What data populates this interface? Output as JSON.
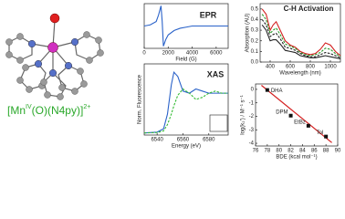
{
  "compound_label": {
    "parts": [
      "[Mn",
      "IV",
      "(O)(N4py)]",
      "2+"
    ]
  },
  "chart_data": [
    {
      "type": "line",
      "title": "EPR",
      "xlabel": "Field (G)",
      "x": [
        0,
        500,
        1000,
        1200,
        1400,
        1500,
        1600,
        1800,
        2000,
        2500,
        3000,
        3500,
        4000,
        5000,
        6000,
        7000
      ],
      "series": [
        {
          "color": "#2a62c9",
          "values": [
            0,
            0.05,
            0.2,
            0.5,
            0.9,
            0.2,
            -0.9,
            -0.6,
            -0.4,
            -0.2,
            -0.1,
            -0.05,
            0,
            0,
            0,
            0
          ]
        }
      ],
      "xlim": [
        0,
        7000
      ],
      "xticks": [
        0,
        2000,
        4000,
        6000
      ],
      "ylim": [
        -1,
        1
      ]
    },
    {
      "type": "line",
      "title": "XAS",
      "xlabel": "Energy (eV)",
      "ylabel": "Norm. Fluorescence",
      "x": [
        6530,
        6540,
        6545,
        6548,
        6551,
        6553,
        6556,
        6560,
        6565,
        6570,
        6575,
        6580,
        6585,
        6590,
        6595
      ],
      "series": [
        {
          "color": "#2a62c9",
          "dashed": false,
          "values": [
            0.05,
            0.07,
            0.15,
            0.5,
            1.2,
            1.5,
            1.4,
            1.05,
            1.0,
            1.1,
            1.05,
            1.0,
            1.0,
            1.0,
            1.0
          ]
        },
        {
          "color": "#33bb33",
          "dashed": true,
          "values": [
            0.05,
            0.06,
            0.1,
            0.25,
            0.5,
            0.7,
            0.95,
            1.1,
            1.0,
            0.85,
            0.9,
            1.0,
            1.05,
            1.0,
            1.0
          ]
        }
      ],
      "xlim": [
        6530,
        6595
      ],
      "xticks": [
        6540,
        6560,
        6580
      ],
      "ylim": [
        0,
        1.7
      ]
    },
    {
      "type": "line",
      "title": "C-H Activation",
      "xlabel": "Wavelength (nm)",
      "ylabel": "Absorption (AU)",
      "x": [
        320,
        360,
        400,
        430,
        460,
        500,
        550,
        600,
        650,
        700,
        750,
        800,
        850,
        900,
        950,
        1000,
        1050,
        1100
      ],
      "series": [
        {
          "color": "#d42020",
          "dashed": false,
          "values": [
            0.5,
            0.45,
            0.3,
            0.35,
            0.38,
            0.3,
            0.2,
            0.16,
            0.14,
            0.1,
            0.08,
            0.07,
            0.08,
            0.12,
            0.18,
            0.16,
            0.1,
            0.06
          ]
        },
        {
          "color": "#2a9a2a",
          "dashed": true,
          "values": [
            0.45,
            0.4,
            0.27,
            0.3,
            0.32,
            0.26,
            0.17,
            0.15,
            0.13,
            0.09,
            0.07,
            0.06,
            0.07,
            0.09,
            0.13,
            0.12,
            0.08,
            0.05
          ]
        },
        {
          "color": "#222222",
          "dashed": true,
          "values": [
            0.4,
            0.35,
            0.24,
            0.26,
            0.27,
            0.22,
            0.14,
            0.13,
            0.11,
            0.08,
            0.06,
            0.05,
            0.05,
            0.07,
            0.09,
            0.08,
            0.06,
            0.04
          ]
        },
        {
          "color": "#222222",
          "dashed": false,
          "values": [
            0.35,
            0.3,
            0.2,
            0.21,
            0.21,
            0.17,
            0.11,
            0.1,
            0.09,
            0.06,
            0.05,
            0.04,
            0.04,
            0.05,
            0.06,
            0.05,
            0.04,
            0.03
          ]
        }
      ],
      "xlim": [
        300,
        1100
      ],
      "xticks": [
        400,
        600,
        800,
        1000
      ],
      "ylim": [
        0,
        0.55
      ],
      "yticks": [
        {
          "value": 0,
          "label": "0.0"
        },
        0.1,
        0.2,
        0.3,
        0.4,
        0.5
      ]
    },
    {
      "type": "scatter",
      "xlabel": "BDE (kcal mol⁻¹)",
      "ylabel": "log(k₂′) / M⁻¹ s⁻¹",
      "labels": [
        "DHA",
        "DPM",
        "EtBz",
        "Tol"
      ],
      "x": [
        78,
        82,
        85,
        88
      ],
      "values": [
        -0.05,
        -1.95,
        -2.7,
        -3.5
      ],
      "color": "#111111",
      "fit": {
        "color": "#d42020",
        "x": [
          77,
          89
        ],
        "values": [
          0.3,
          -3.95
        ]
      },
      "xlim": [
        76,
        90
      ],
      "xticks": [
        76,
        78,
        80,
        82,
        84,
        86,
        88,
        90
      ],
      "ylim": [
        -4.2,
        0.4
      ],
      "yticks": [
        0,
        -1,
        -2,
        -3,
        -4
      ]
    }
  ]
}
